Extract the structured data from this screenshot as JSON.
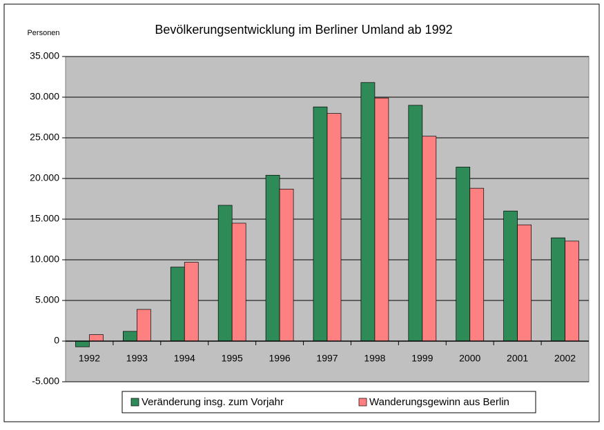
{
  "chart_data": {
    "type": "bar",
    "title": "Bevölkerungsentwicklung im Berliner Umland ab 1992",
    "y_label": "Personen",
    "categories": [
      "1992",
      "1993",
      "1994",
      "1995",
      "1996",
      "1997",
      "1998",
      "1999",
      "2000",
      "2001",
      "2002"
    ],
    "series": [
      {
        "name": "Veränderung insg. zum Vorjahr",
        "color": "#2e8b57",
        "values": [
          -700,
          1200,
          9100,
          16700,
          20400,
          28800,
          31800,
          29000,
          21400,
          16000,
          12700
        ]
      },
      {
        "name": "Wanderungsgewinn aus Berlin",
        "color": "#ff8080",
        "values": [
          800,
          3900,
          9700,
          14500,
          18700,
          28000,
          29900,
          25200,
          18800,
          14300,
          12300
        ]
      }
    ],
    "ylim": [
      -5000,
      35000
    ],
    "yticks": [
      {
        "value": -5000,
        "label": "-5.000"
      },
      0,
      {
        "value": 5000,
        "label": "5.000"
      },
      {
        "value": 10000,
        "label": "10.000"
      },
      {
        "value": 15000,
        "label": "15.000"
      },
      {
        "value": 20000,
        "label": "20.000"
      },
      {
        "value": 25000,
        "label": "25.000"
      },
      {
        "value": 30000,
        "label": "30.000"
      },
      {
        "value": 35000,
        "label": "35.000"
      }
    ],
    "grid": true,
    "legend": "bottom",
    "background": "#c0c0c0"
  }
}
